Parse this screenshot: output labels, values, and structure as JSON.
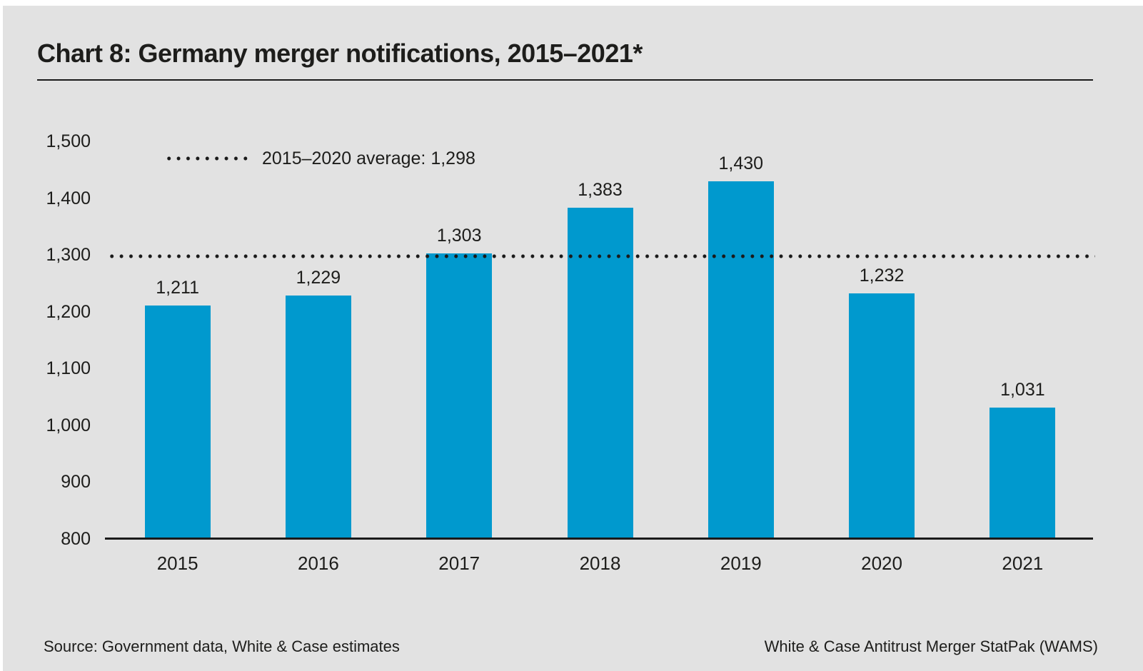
{
  "header": {
    "title": "Chart 8: Germany merger notifications, 2015–2021*"
  },
  "chart_data": {
    "type": "bar",
    "title": "Chart 8: Germany merger notifications, 2015–2021*",
    "categories": [
      "2015",
      "2016",
      "2017",
      "2018",
      "2019",
      "2020",
      "2021"
    ],
    "values": [
      1211,
      1229,
      1303,
      1383,
      1430,
      1232,
      1031
    ],
    "value_labels": [
      "1,211",
      "1,229",
      "1,303",
      "1,383",
      "1,430",
      "1,232",
      "1,031"
    ],
    "xlabel": "",
    "ylabel": "",
    "ylim": [
      800,
      1500
    ],
    "ytick_step": 100,
    "ytick_labels": [
      "1,500",
      "1,400",
      "1,300",
      "1,200",
      "1,100",
      "1,000",
      "900",
      "800"
    ],
    "grid": false,
    "legend_position": "top-left inside plot",
    "average_line": {
      "value": 1298,
      "label": "2015–2020 average: 1,298",
      "style": "dotted"
    }
  },
  "footer": {
    "source": "Source: Government data, White & Case estimates",
    "attribution": "White & Case Antitrust Merger StatPak (WAMS)"
  },
  "colors": {
    "page_background": "#ffffff",
    "panel_background": "#e2e2e2",
    "bar": "#0099ce",
    "text": "#1d1d1b",
    "axis": "#1a1a1a"
  }
}
